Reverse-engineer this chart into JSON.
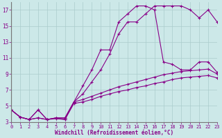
{
  "xlabel": "Windchill (Refroidissement éolien,°C)",
  "background_color": "#cce8e8",
  "grid_color": "#aacccc",
  "line_color": "#880088",
  "xlim": [
    0,
    23
  ],
  "ylim": [
    3,
    18
  ],
  "yticks": [
    3,
    5,
    7,
    9,
    11,
    13,
    15,
    17
  ],
  "xticks": [
    0,
    1,
    2,
    3,
    4,
    5,
    6,
    7,
    8,
    9,
    10,
    11,
    12,
    13,
    14,
    15,
    16,
    17,
    18,
    19,
    20,
    21,
    22,
    23
  ],
  "curve1_x": [
    0,
    1,
    2,
    3,
    4,
    5,
    6,
    7,
    8,
    9,
    10,
    11,
    12,
    13,
    14,
    15,
    16,
    17,
    18,
    19,
    20,
    21,
    22,
    23
  ],
  "curve1_y": [
    4.5,
    3.6,
    3.3,
    4.5,
    3.3,
    3.5,
    3.5,
    5.5,
    7.5,
    9.5,
    12.0,
    12.0,
    15.5,
    16.5,
    17.5,
    17.5,
    17.0,
    10.5,
    10.2,
    9.5,
    9.5,
    10.5,
    10.5,
    9.2
  ],
  "curve2_x": [
    0,
    1,
    2,
    3,
    4,
    5,
    6,
    7,
    8,
    9,
    10,
    11,
    12,
    13,
    14,
    15,
    16,
    17,
    18,
    19,
    20,
    21,
    22,
    23
  ],
  "curve2_y": [
    4.5,
    3.6,
    3.3,
    4.5,
    3.3,
    3.5,
    3.5,
    5.5,
    6.5,
    8.0,
    9.5,
    11.5,
    14.0,
    15.5,
    15.5,
    16.5,
    17.5,
    17.5,
    17.5,
    17.5,
    17.0,
    16.0,
    17.0,
    15.5
  ],
  "curve3_x": [
    0,
    1,
    2,
    3,
    4,
    5,
    6,
    7,
    8,
    9,
    10,
    11,
    12,
    13,
    14,
    15,
    16,
    17,
    18,
    19,
    20,
    21,
    22,
    23
  ],
  "curve3_y": [
    4.5,
    3.6,
    3.3,
    3.5,
    3.3,
    3.5,
    3.3,
    5.5,
    5.8,
    6.2,
    6.6,
    7.0,
    7.4,
    7.7,
    8.0,
    8.3,
    8.6,
    8.9,
    9.1,
    9.3,
    9.4,
    9.5,
    9.6,
    9.0
  ],
  "curve4_x": [
    0,
    1,
    2,
    3,
    4,
    5,
    6,
    7,
    8,
    9,
    10,
    11,
    12,
    13,
    14,
    15,
    16,
    17,
    18,
    19,
    20,
    21,
    22,
    23
  ],
  "curve4_y": [
    4.5,
    3.6,
    3.3,
    3.5,
    3.3,
    3.4,
    3.3,
    5.3,
    5.5,
    5.8,
    6.2,
    6.5,
    6.8,
    7.0,
    7.3,
    7.5,
    7.8,
    8.0,
    8.3,
    8.5,
    8.6,
    8.7,
    8.8,
    8.5
  ]
}
